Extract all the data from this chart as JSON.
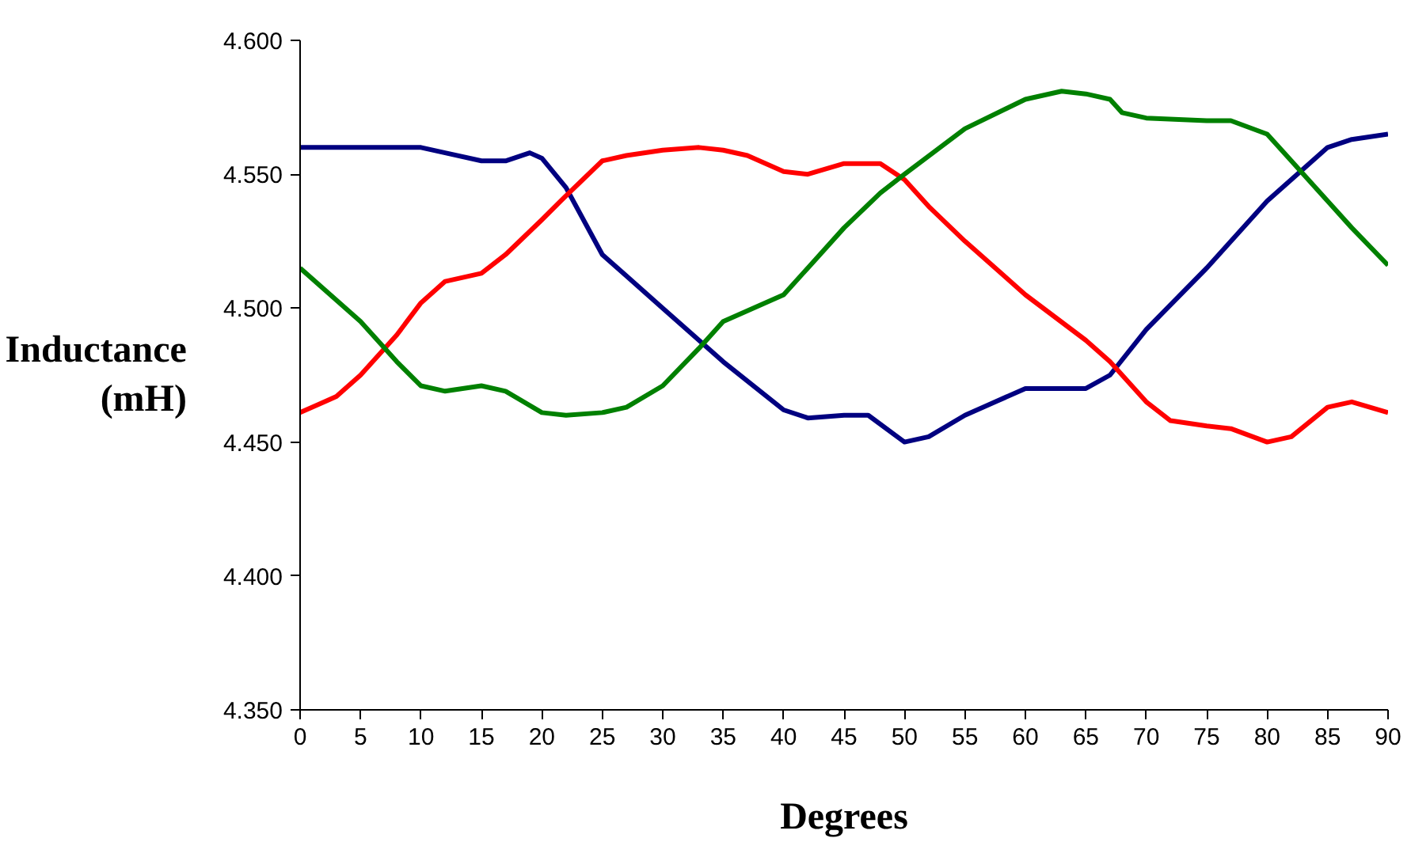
{
  "chart_data": {
    "type": "line",
    "xlabel": "Degrees",
    "ylabel": "Inductance\n(mH)",
    "xlim": [
      0,
      90
    ],
    "ylim": [
      4.35,
      4.6
    ],
    "xticks": [
      0,
      5,
      10,
      15,
      20,
      25,
      30,
      35,
      40,
      45,
      50,
      55,
      60,
      65,
      70,
      75,
      80,
      85,
      90
    ],
    "yticks": [
      {
        "value": 4.35,
        "label": "4.350"
      },
      {
        "value": 4.4,
        "label": "4.400"
      },
      {
        "value": 4.45,
        "label": "4.450"
      },
      {
        "value": 4.5,
        "label": "4.500"
      },
      {
        "value": 4.55,
        "label": "4.550"
      },
      {
        "value": 4.6,
        "label": "4.600"
      }
    ],
    "grid": false,
    "marker": "none",
    "line_style": "solid",
    "series": [
      {
        "color": "#000080",
        "x": [
          0,
          5,
          10,
          12,
          15,
          17,
          19,
          20,
          22,
          25,
          27,
          30,
          35,
          40,
          42,
          45,
          47,
          50,
          52,
          55,
          60,
          62,
          65,
          67,
          70,
          75,
          80,
          85,
          87,
          90
        ],
        "values": [
          4.56,
          4.56,
          4.56,
          4.558,
          4.555,
          4.555,
          4.558,
          4.556,
          4.545,
          4.52,
          4.512,
          4.5,
          4.48,
          4.462,
          4.459,
          4.46,
          4.46,
          4.45,
          4.452,
          4.46,
          4.47,
          4.47,
          4.47,
          4.475,
          4.492,
          4.515,
          4.54,
          4.56,
          4.563,
          4.565
        ]
      },
      {
        "color": "#ff0000",
        "x": [
          0,
          3,
          5,
          8,
          10,
          12,
          15,
          17,
          20,
          22,
          25,
          27,
          30,
          33,
          35,
          37,
          40,
          42,
          45,
          48,
          50,
          52,
          55,
          60,
          65,
          67,
          70,
          72,
          75,
          77,
          80,
          82,
          85,
          87,
          90
        ],
        "values": [
          4.461,
          4.467,
          4.475,
          4.49,
          4.502,
          4.51,
          4.513,
          4.52,
          4.533,
          4.542,
          4.555,
          4.557,
          4.559,
          4.56,
          4.559,
          4.557,
          4.551,
          4.55,
          4.554,
          4.554,
          4.548,
          4.538,
          4.525,
          4.505,
          4.488,
          4.48,
          4.465,
          4.458,
          4.456,
          4.455,
          4.45,
          4.452,
          4.463,
          4.465,
          4.461
        ]
      },
      {
        "color": "#008000",
        "x": [
          0,
          3,
          5,
          8,
          10,
          12,
          15,
          17,
          20,
          22,
          25,
          27,
          30,
          33,
          35,
          37,
          40,
          42,
          45,
          48,
          50,
          55,
          60,
          63,
          65,
          67,
          68,
          70,
          75,
          77,
          80,
          82,
          85,
          87,
          90
        ],
        "values": [
          4.515,
          4.503,
          4.495,
          4.48,
          4.471,
          4.469,
          4.471,
          4.469,
          4.461,
          4.46,
          4.461,
          4.463,
          4.471,
          4.485,
          4.495,
          4.499,
          4.505,
          4.515,
          4.53,
          4.543,
          4.55,
          4.567,
          4.578,
          4.581,
          4.58,
          4.578,
          4.573,
          4.571,
          4.57,
          4.57,
          4.565,
          4.555,
          4.54,
          4.53,
          4.516
        ]
      }
    ]
  }
}
